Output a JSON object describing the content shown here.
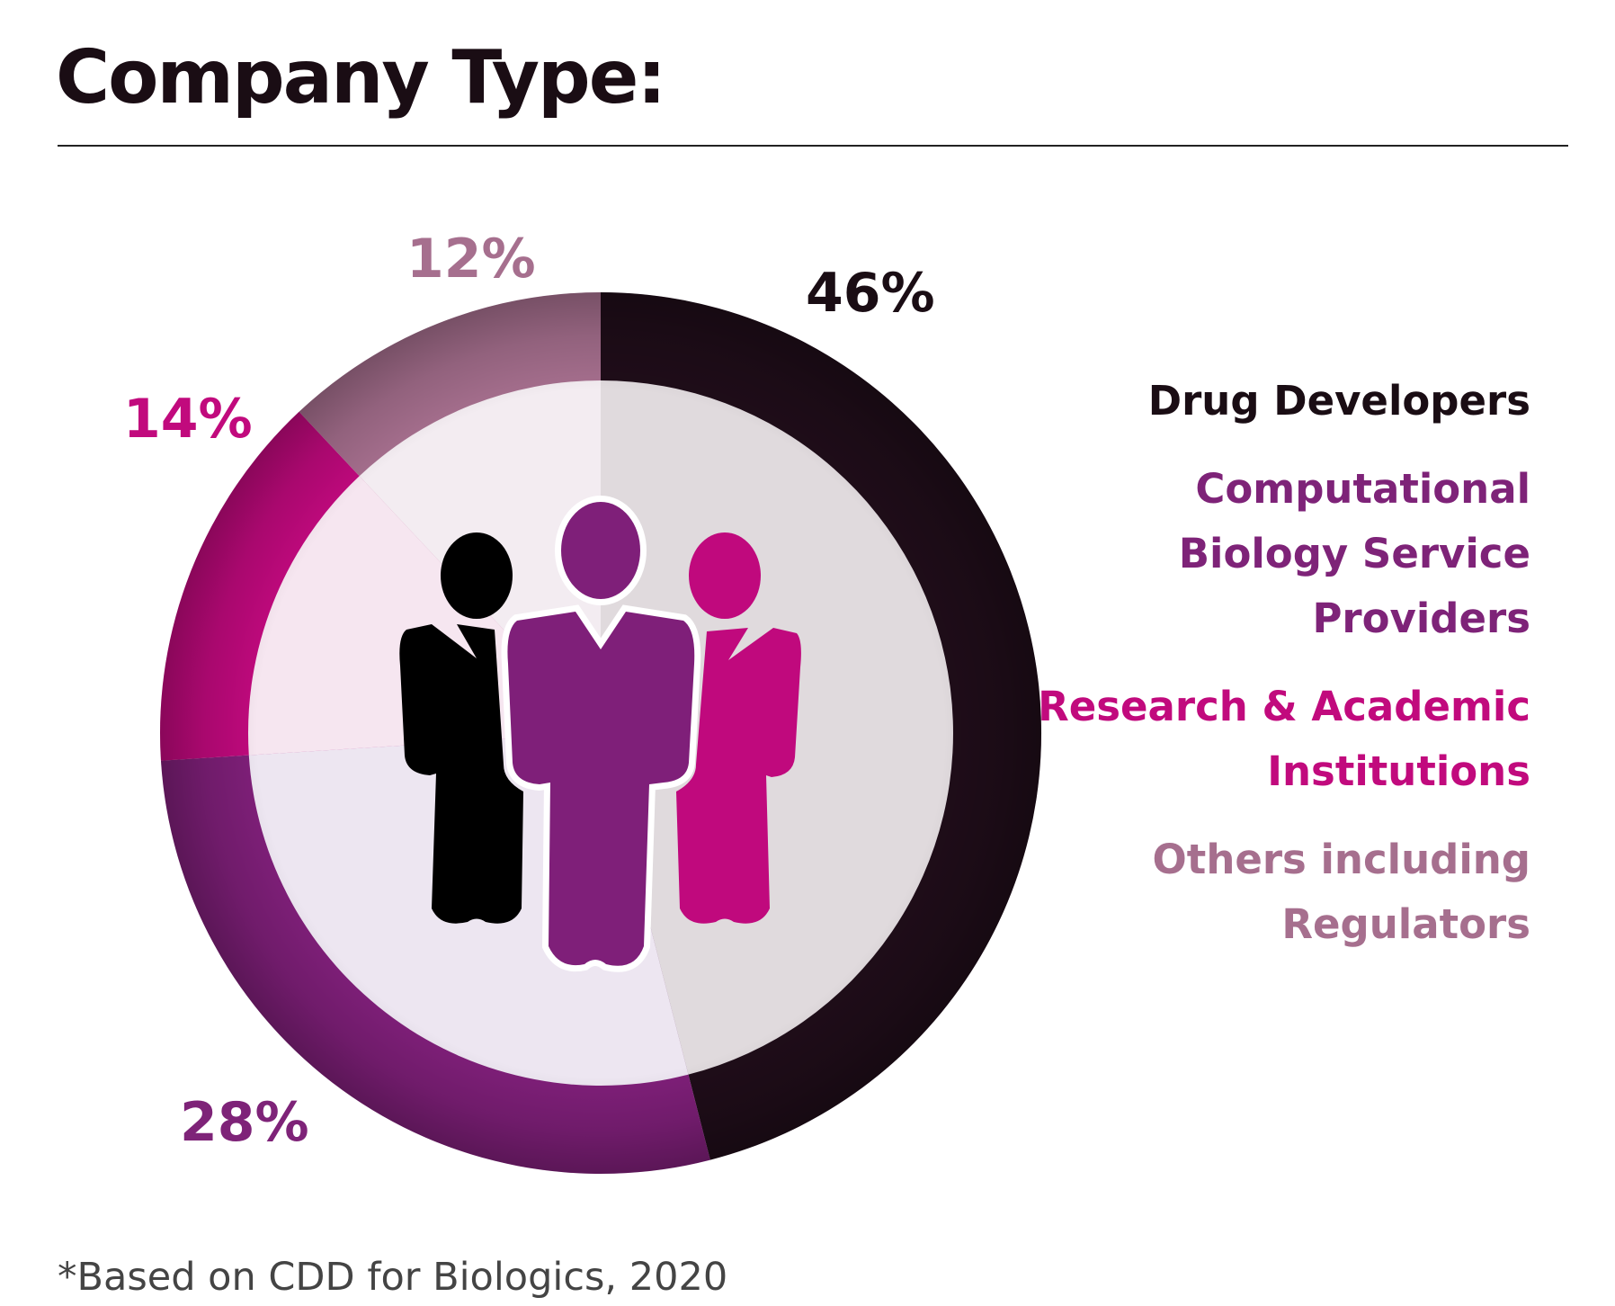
{
  "title": "Company Type:",
  "footnote": "*Based on CDD for Biologics, 2020",
  "chart_data": {
    "type": "pie",
    "style": "donut",
    "title": "Company Type:",
    "start_angle_deg": 0,
    "direction": "clockwise",
    "slices": [
      {
        "label": "Drug Developers",
        "value": 46,
        "display": "46%",
        "ring_color": "#1f0d19",
        "inner_color": "#e0dadd",
        "text_color": "#1a0d14"
      },
      {
        "label": "Computational Biology Service Providers",
        "value": 28,
        "display": "28%",
        "ring_color": "#7f1f79",
        "inner_color": "#ede6f1",
        "text_color": "#7e2378"
      },
      {
        "label": "Research & Academic Institutions",
        "value": 14,
        "display": "14%",
        "ring_color": "#c0097d",
        "inner_color": "#f6e6f0",
        "text_color": "#c10a7d"
      },
      {
        "label": "Others including Regulators",
        "value": 12,
        "display": "12%",
        "ring_color": "#a66f8e",
        "inner_color": "#f3ecf1",
        "text_color": "#a66f8e"
      }
    ],
    "legend_position": "right"
  },
  "icons": {
    "center": "three-people-icon"
  }
}
